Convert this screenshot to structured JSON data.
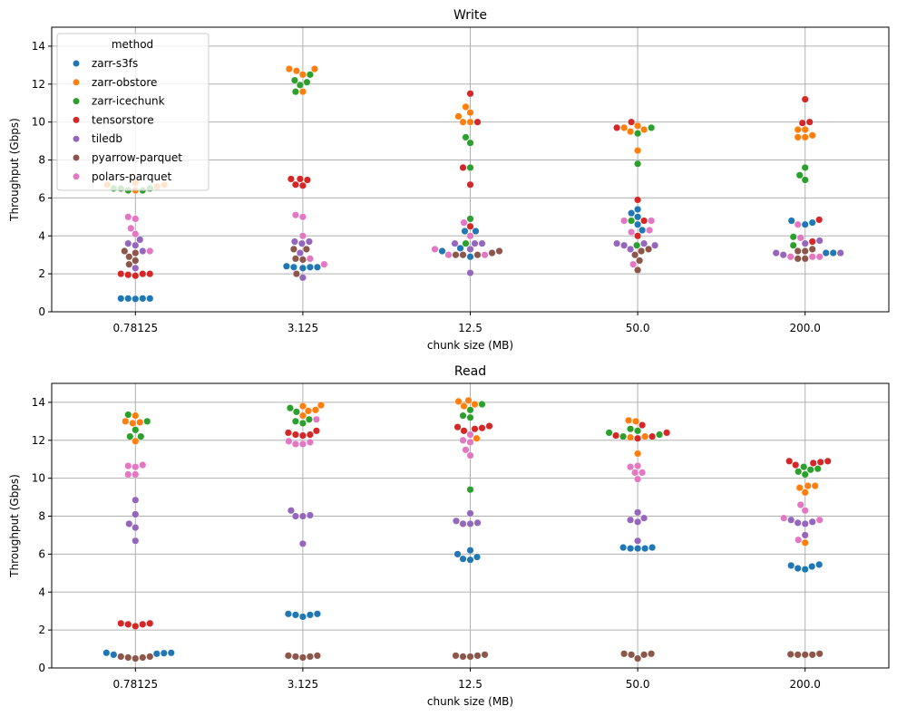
{
  "legend": {
    "title": "method",
    "placement": "upper-left of Write panel"
  },
  "colors": {
    "zarr-s3fs": "#1f77b4",
    "zarr-obstore": "#ff7f0e",
    "zarr-icechunk": "#2ca02c",
    "tensorstore": "#d62728",
    "tiledb": "#9467bd",
    "pyarrow-parquet": "#8c564b",
    "polars-parquet": "#e377c2"
  },
  "chart_data": [
    {
      "type": "scatter",
      "style": "swarm",
      "title": "Write",
      "xlabel": "chunk size (MB)",
      "ylabel": "Throughput (Gbps)",
      "categories": [
        "0.78125",
        "3.125",
        "12.5",
        "50.0",
        "200.0"
      ],
      "ylim": [
        0,
        15
      ],
      "yticks": [
        "0",
        "2",
        "4",
        "6",
        "8",
        "10",
        "12",
        "14"
      ],
      "grid": true,
      "legend": true,
      "series": [
        {
          "name": "zarr-s3fs",
          "values": [
            [
              0.7,
              0.7,
              0.68,
              0.7,
              0.7
            ],
            [
              2.4,
              2.35,
              2.3,
              2.35,
              2.35
            ],
            [
              4.25,
              4.25,
              3.2,
              3.35,
              2.9
            ],
            [
              5.4,
              5.2,
              5.0,
              4.3,
              4.6
            ],
            [
              4.8,
              4.6,
              4.7,
              3.1,
              3.1
            ]
          ]
        },
        {
          "name": "zarr-obstore",
          "values": [
            [
              6.7,
              6.8,
              6.6,
              6.4,
              6.7
            ],
            [
              12.8,
              12.7,
              12.8,
              12.5,
              11.6
            ],
            [
              10.8,
              10.5,
              10.0,
              10.3,
              10.0
            ],
            [
              9.8,
              9.7,
              9.5,
              8.5,
              9.6
            ],
            [
              9.6,
              9.6,
              9.2,
              9.2,
              9.3
            ]
          ]
        },
        {
          "name": "zarr-icechunk",
          "values": [
            [
              6.5,
              6.4,
              6.5,
              6.4,
              6.5
            ],
            [
              12.1,
              12.5,
              12.2,
              11.95,
              11.6
            ],
            [
              9.2,
              8.9,
              7.6,
              4.9,
              3.6
            ],
            [
              9.7,
              9.4,
              7.8,
              4.8,
              3.5
            ],
            [
              7.6,
              7.2,
              6.95,
              3.95,
              3.5
            ]
          ]
        },
        {
          "name": "tensorstore",
          "values": [
            [
              2.0,
              1.95,
              1.9,
              2.0,
              2.0
            ],
            [
              7.0,
              6.7,
              6.65,
              6.95,
              7.0
            ],
            [
              11.5,
              10.0,
              7.6,
              6.7,
              4.5
            ],
            [
              10.0,
              9.7,
              5.9,
              4.0,
              4.8
            ],
            [
              11.2,
              10.0,
              9.95,
              4.85,
              3.7
            ]
          ]
        },
        {
          "name": "tiledb",
          "values": [
            [
              3.8,
              3.6,
              3.5,
              3.2,
              2.3
            ],
            [
              3.7,
              3.6,
              3.7,
              3.1,
              1.8
            ],
            [
              3.6,
              3.6,
              3.3,
              3.6,
              2.05
            ],
            [
              3.6,
              3.5,
              3.3,
              3.5,
              3.6
            ],
            [
              3.75,
              3.6,
              3.1,
              3.0,
              3.1
            ]
          ]
        },
        {
          "name": "pyarrow-parquet",
          "values": [
            [
              3.2,
              3.1,
              2.9,
              2.7,
              2.5
            ],
            [
              3.3,
              3.3,
              2.75,
              2.8,
              2.0
            ],
            [
              3.2,
              3.0,
              3.0,
              3.0,
              3.1
            ],
            [
              3.2,
              3.0,
              2.7,
              3.3,
              2.2
            ],
            [
              3.3,
              3.2,
              3.2,
              2.8,
              2.8
            ]
          ]
        },
        {
          "name": "polars-parquet",
          "values": [
            [
              5.0,
              4.9,
              4.4,
              4.1,
              3.2
            ],
            [
              5.1,
              5.0,
              4.0,
              2.8,
              2.5
            ],
            [
              4.7,
              4.0,
              3.3,
              3.0,
              3.0
            ],
            [
              4.8,
              4.8,
              4.3,
              4.2,
              2.5
            ],
            [
              4.6,
              3.9,
              2.9,
              2.9,
              2.9
            ]
          ]
        }
      ]
    },
    {
      "type": "scatter",
      "style": "swarm",
      "title": "Read",
      "xlabel": "chunk size (MB)",
      "ylabel": "Throughput (Gbps)",
      "categories": [
        "0.78125",
        "3.125",
        "12.5",
        "50.0",
        "200.0"
      ],
      "ylim": [
        0,
        15
      ],
      "yticks": [
        "0",
        "2",
        "4",
        "6",
        "8",
        "10",
        "12",
        "14"
      ],
      "grid": true,
      "legend": false,
      "series": [
        {
          "name": "zarr-s3fs",
          "values": [
            [
              0.8,
              0.78,
              0.75,
              0.7,
              0.8
            ],
            [
              2.85,
              2.8,
              2.7,
              2.8,
              2.85
            ],
            [
              6.2,
              6.0,
              5.85,
              5.75,
              5.7
            ],
            [
              6.35,
              6.3,
              6.3,
              6.3,
              6.35
            ],
            [
              5.45,
              5.35,
              5.4,
              5.25,
              5.2
            ]
          ]
        },
        {
          "name": "zarr-obstore",
          "values": [
            [
              13.0,
              13.3,
              12.9,
              12.95,
              11.95
            ],
            [
              13.8,
              13.85,
              13.55,
              13.6,
              13.3
            ],
            [
              14.05,
              14.1,
              13.9,
              12.1,
              13.8
            ],
            [
              13.0,
              13.05,
              12.2,
              12.15,
              11.3
            ],
            [
              9.6,
              9.5,
              9.6,
              9.25,
              6.6
            ]
          ]
        },
        {
          "name": "zarr-icechunk",
          "values": [
            [
              13.35,
              13.0,
              12.55,
              12.2,
              12.2
            ],
            [
              13.7,
              13.5,
              13.1,
              13.0,
              12.9
            ],
            [
              13.9,
              13.6,
              13.3,
              13.2,
              9.4
            ],
            [
              12.6,
              12.5,
              12.3,
              12.2,
              12.4
            ],
            [
              10.5,
              10.6,
              10.45,
              10.2,
              10.35
            ]
          ]
        },
        {
          "name": "tensorstore",
          "values": [
            [
              2.35,
              2.3,
              2.2,
              2.3,
              2.35
            ],
            [
              12.5,
              12.4,
              12.3,
              12.25,
              12.3
            ],
            [
              12.7,
              12.75,
              12.65,
              12.6,
              12.5
            ],
            [
              12.8,
              12.4,
              12.25,
              12.2,
              12.1
            ],
            [
              10.9,
              10.85,
              10.9,
              10.7,
              10.8
            ]
          ]
        },
        {
          "name": "tiledb",
          "values": [
            [
              8.85,
              8.1,
              7.6,
              7.4,
              6.7
            ],
            [
              8.3,
              8.0,
              8.05,
              8.0,
              6.55
            ],
            [
              8.15,
              7.75,
              7.6,
              7.65,
              7.6
            ],
            [
              8.2,
              7.9,
              7.8,
              7.7,
              6.7
            ],
            [
              7.8,
              7.7,
              7.6,
              7.65,
              7.0
            ]
          ]
        },
        {
          "name": "pyarrow-parquet",
          "values": [
            [
              0.6,
              0.55,
              0.5,
              0.55,
              0.6
            ],
            [
              0.65,
              0.6,
              0.55,
              0.6,
              0.65
            ],
            [
              0.65,
              0.7,
              0.6,
              0.6,
              0.65
            ],
            [
              0.75,
              0.7,
              0.75,
              0.7,
              0.5
            ],
            [
              0.75,
              0.72,
              0.7,
              0.7,
              0.7
            ]
          ]
        },
        {
          "name": "polars-parquet",
          "values": [
            [
              10.7,
              10.65,
              10.6,
              10.2,
              10.2
            ],
            [
              13.1,
              11.95,
              11.9,
              11.8,
              11.8
            ],
            [
              12.3,
              12.0,
              11.9,
              11.5,
              11.2
            ],
            [
              10.6,
              10.65,
              10.3,
              10.3,
              9.95
            ],
            [
              8.6,
              8.3,
              7.9,
              7.8,
              6.75
            ]
          ]
        }
      ]
    }
  ]
}
